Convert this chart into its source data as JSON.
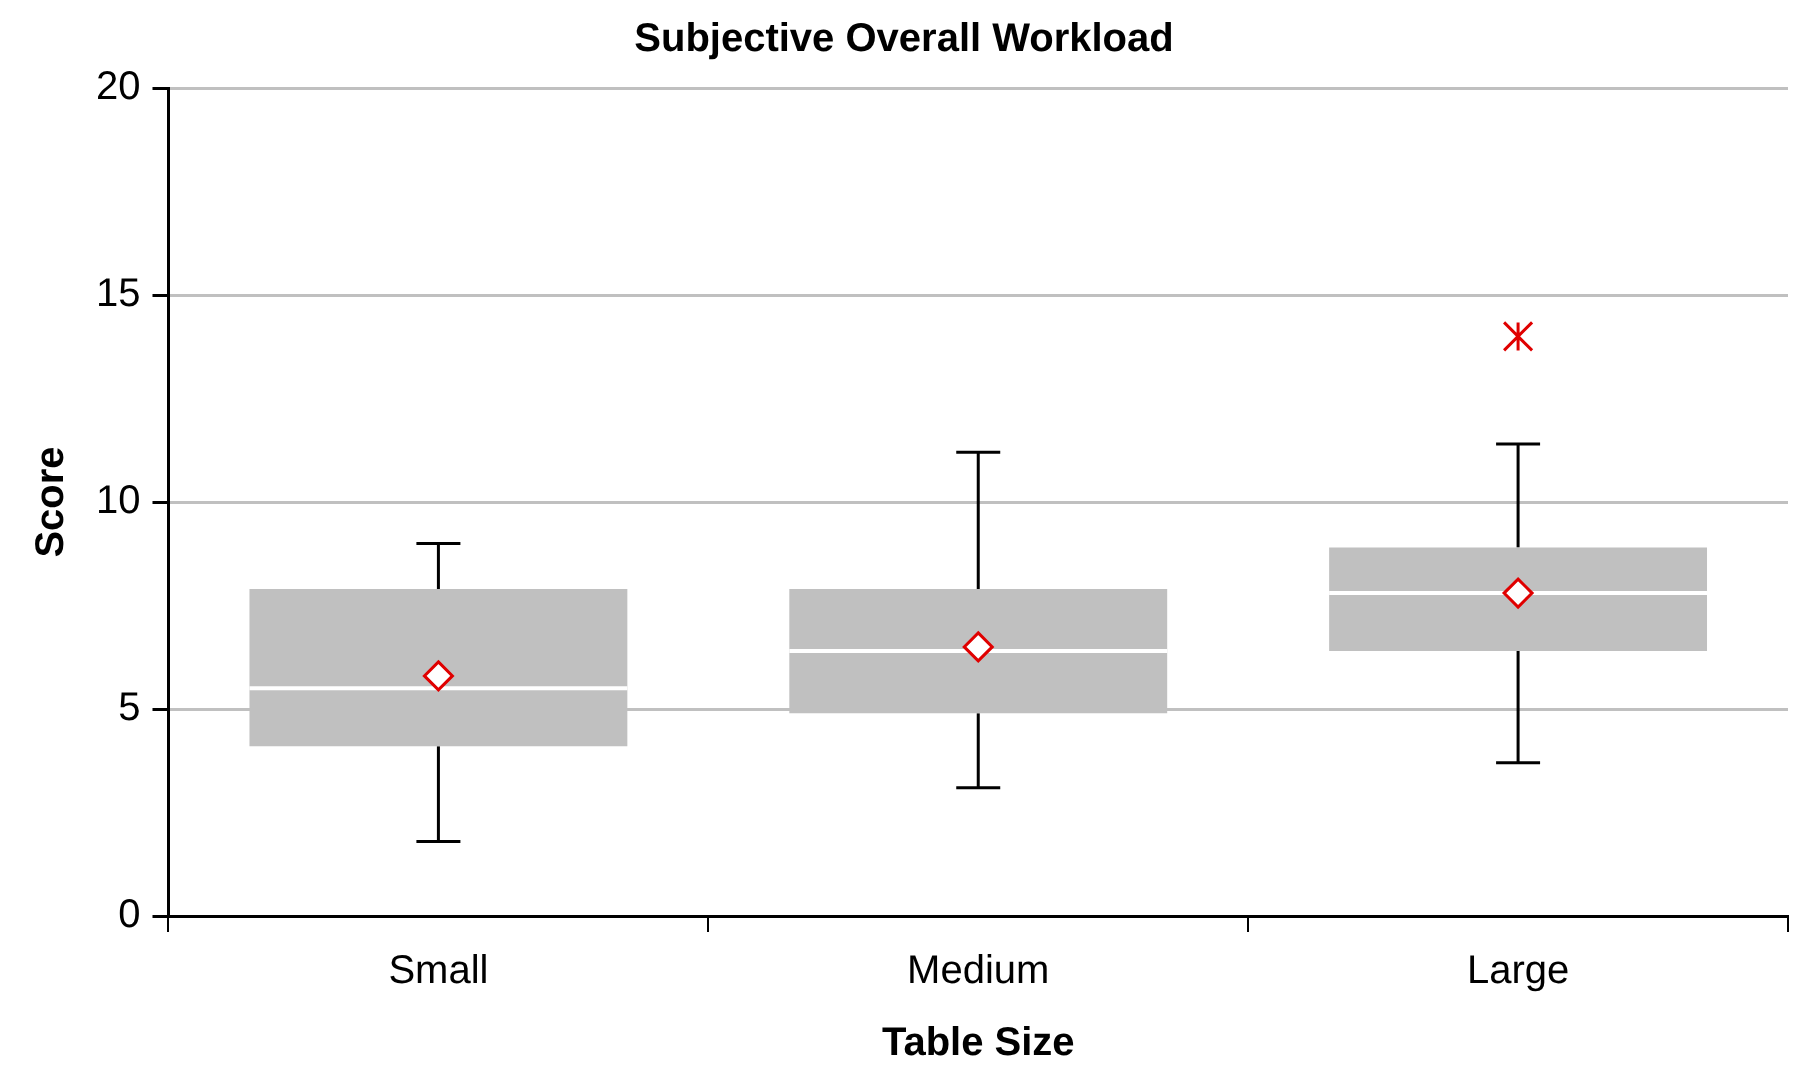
{
  "chart_data": {
    "type": "box",
    "title": "Subjective Overall Workload",
    "xlabel": "Table Size",
    "ylabel": "Score",
    "categories": [
      "Small",
      "Medium",
      "Large"
    ],
    "series": [
      {
        "color": "#c0c0c0",
        "boxes": [
          {
            "low": 1.8,
            "q1": 4.1,
            "median": 5.5,
            "q3": 7.9,
            "high": 9.0,
            "mean": 5.8
          },
          {
            "low": 3.1,
            "q1": 4.9,
            "median": 6.4,
            "q3": 7.9,
            "high": 11.2,
            "mean": 6.5
          },
          {
            "low": 3.7,
            "q1": 6.4,
            "median": 7.8,
            "q3": 8.9,
            "high": 11.4,
            "mean": 7.8,
            "outliers": [
              14.0
            ]
          }
        ]
      }
    ],
    "ylim": [
      0,
      20
    ],
    "yticks": [
      0,
      5,
      10,
      15,
      20
    ],
    "grid": "y",
    "legend": false
  }
}
